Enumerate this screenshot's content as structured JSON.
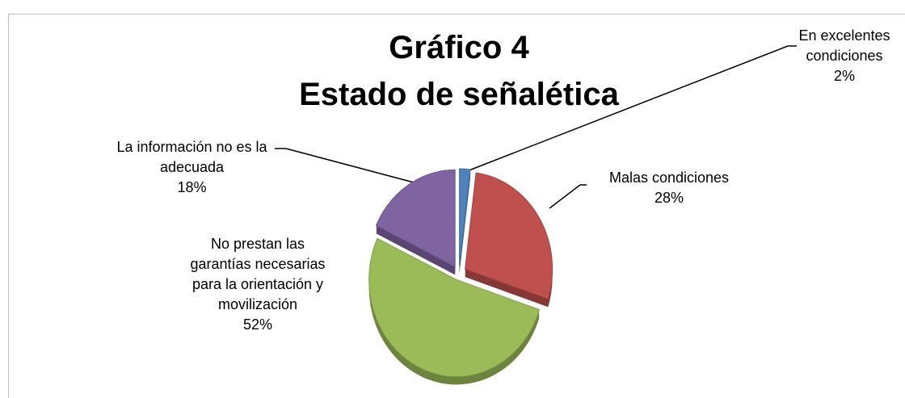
{
  "chart_data": {
    "type": "pie",
    "title": "Gráfico 4",
    "subtitle": "Estado de señalética",
    "categories": [
      "En excelentes condiciones",
      "Malas condiciones",
      "No prestan las garantías necesarias para la orientación y movilización",
      "La información no es la adecuada"
    ],
    "values": [
      2,
      28,
      52,
      18
    ],
    "value_labels": [
      "2%",
      "28%",
      "52%",
      "18%"
    ],
    "colors": [
      "#4f81bd",
      "#c0504d",
      "#9bbb59",
      "#8064a2"
    ]
  }
}
